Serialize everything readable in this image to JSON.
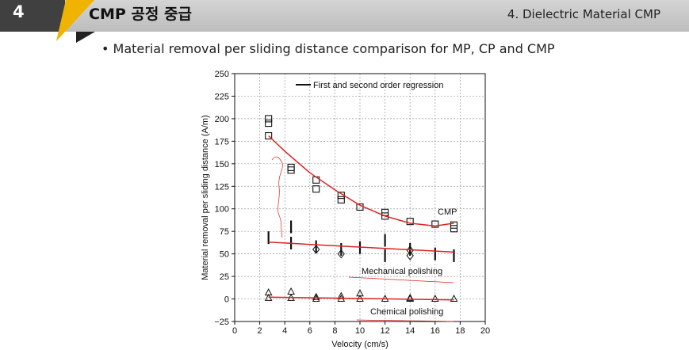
{
  "header": {
    "number": "4",
    "title": "CMP 공정 중급",
    "section": "4. Dielectric Material CMP"
  },
  "bullet": "• Material removal per sliding distance comparison for MP, CP and CMP",
  "chart_data": {
    "type": "scatter",
    "title": "",
    "xlabel": "Velocity (cm/s)",
    "ylabel": "Material removal per sliding distance (A/m)",
    "xlim": [
      0,
      20
    ],
    "ylim": [
      -25,
      250
    ],
    "xticks": [
      "0",
      "2",
      "4",
      "6",
      "8",
      "10",
      "12",
      "14",
      "16",
      "18",
      "20"
    ],
    "yticks": [
      "−25",
      "0",
      "25",
      "50",
      "75",
      "100",
      "125",
      "150",
      "175",
      "200",
      "225",
      "250"
    ],
    "grid": true,
    "legend": {
      "position": "top",
      "entries": [
        {
          "label": "First and second order regression",
          "marker": "line"
        }
      ]
    },
    "annotations": [
      "CMP",
      "Mechanical polishing",
      "Chemical polishing"
    ],
    "series": [
      {
        "marker": "square",
        "points": [
          [
            2.7,
            200
          ],
          [
            2.7,
            195
          ],
          [
            2.7,
            181
          ],
          [
            4.5,
            146
          ],
          [
            4.5,
            143
          ],
          [
            6.5,
            132
          ],
          [
            6.5,
            122
          ],
          [
            8.5,
            115
          ],
          [
            8.5,
            110
          ],
          [
            10,
            102
          ],
          [
            12,
            96
          ],
          [
            12,
            92
          ],
          [
            14,
            86
          ],
          [
            16,
            83
          ],
          [
            17.5,
            82
          ],
          [
            17.5,
            78
          ]
        ]
      },
      {
        "marker": "vbar",
        "points": [
          [
            2.7,
            68
          ],
          [
            4.5,
            80
          ],
          [
            4.5,
            62
          ],
          [
            6.5,
            58
          ],
          [
            8.5,
            55
          ],
          [
            10,
            57
          ],
          [
            12,
            65
          ],
          [
            12,
            48
          ],
          [
            14,
            55
          ],
          [
            16,
            50
          ],
          [
            17.5,
            48
          ]
        ]
      },
      {
        "marker": "diamond",
        "points": [
          [
            6.5,
            55
          ],
          [
            8.5,
            50
          ],
          [
            14,
            54
          ],
          [
            14,
            48
          ]
        ]
      },
      {
        "marker": "triangle",
        "points": [
          [
            2.7,
            7
          ],
          [
            2.7,
            1
          ],
          [
            4.5,
            8
          ],
          [
            4.5,
            1
          ],
          [
            6.5,
            2
          ],
          [
            6.5,
            0
          ],
          [
            8.5,
            3
          ],
          [
            8.5,
            0
          ],
          [
            10,
            6
          ],
          [
            10,
            0
          ],
          [
            12,
            0
          ],
          [
            14,
            1
          ],
          [
            14,
            0
          ],
          [
            16,
            0
          ],
          [
            17.5,
            0
          ]
        ]
      },
      {
        "marker": "regression",
        "color": "#dd2222",
        "points": [
          [
            2.7,
            181
          ],
          [
            4,
            164
          ],
          [
            6,
            140
          ],
          [
            8,
            121
          ],
          [
            10,
            104
          ],
          [
            12,
            92
          ],
          [
            14,
            84
          ],
          [
            16,
            81
          ],
          [
            17.5,
            84
          ]
        ]
      },
      {
        "marker": "regression",
        "color": "#dd2222",
        "points": [
          [
            2.7,
            63
          ],
          [
            17.5,
            52
          ]
        ]
      },
      {
        "marker": "regression",
        "color": "#dd2222",
        "points": [
          [
            2.7,
            2
          ],
          [
            17.5,
            -1
          ]
        ]
      }
    ],
    "colors": {
      "regression": "#dd2222",
      "markers": "#111111",
      "grid": "#999999"
    }
  }
}
